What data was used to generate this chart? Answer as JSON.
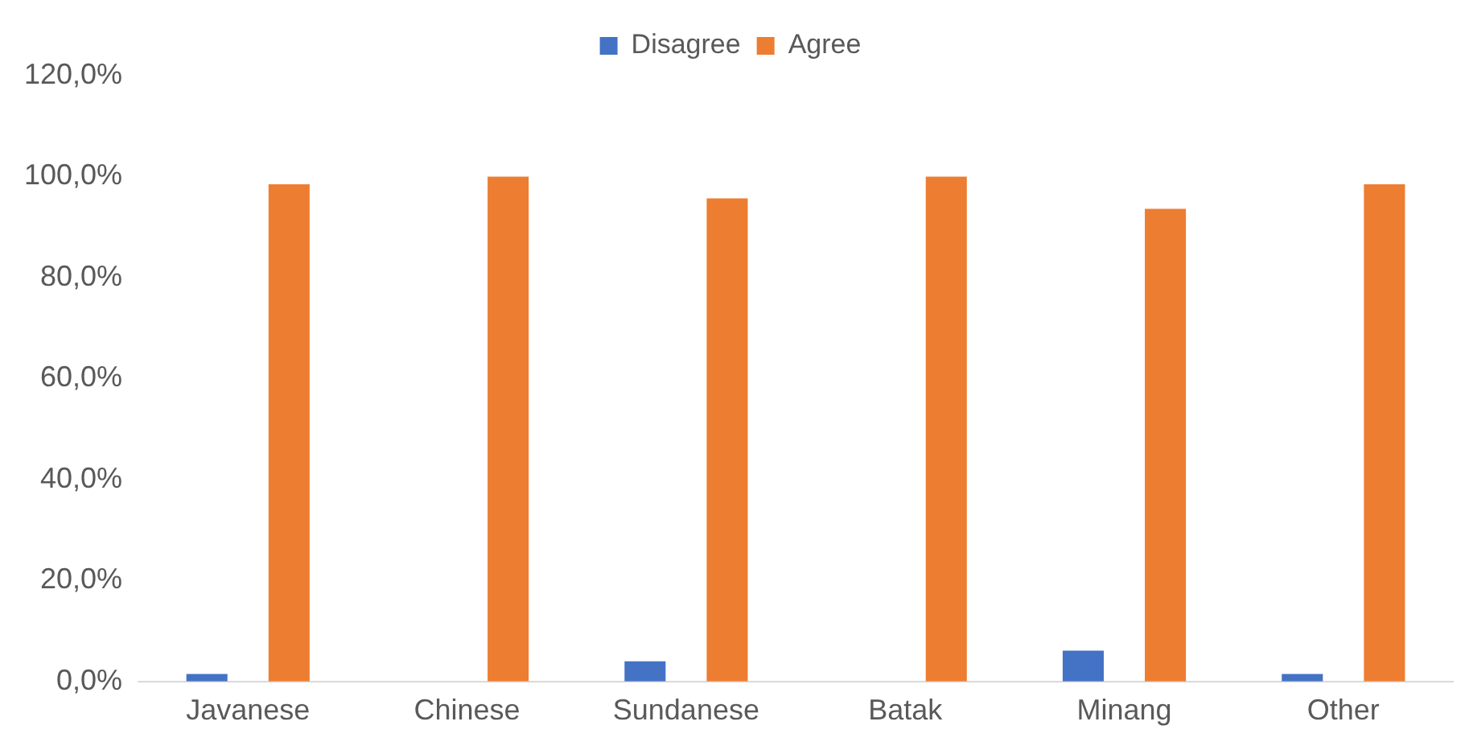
{
  "chart_data": {
    "type": "bar",
    "categories": [
      "Javanese",
      "Chinese",
      "Sundanese",
      "Batak",
      "Minang",
      "Other"
    ],
    "series": [
      {
        "name": "Disagree",
        "color": "#4472c4",
        "values": [
          1.5,
          0,
          4.0,
          0,
          6.1,
          1.5
        ]
      },
      {
        "name": "Agree",
        "color": "#ed7d31",
        "values": [
          98.5,
          100,
          95.7,
          100,
          93.6,
          98.5
        ]
      }
    ],
    "ylim": [
      0,
      120
    ],
    "yticks": [
      {
        "value": 0,
        "label": "0,0%"
      },
      {
        "value": 20,
        "label": "20,0%"
      },
      {
        "value": 40,
        "label": "40,0%"
      },
      {
        "value": 60,
        "label": "60,0%"
      },
      {
        "value": 80,
        "label": "80,0%"
      },
      {
        "value": 100,
        "label": "100,0%"
      },
      {
        "value": 120,
        "label": "120,0%"
      }
    ],
    "grid": false,
    "legend": "top"
  }
}
